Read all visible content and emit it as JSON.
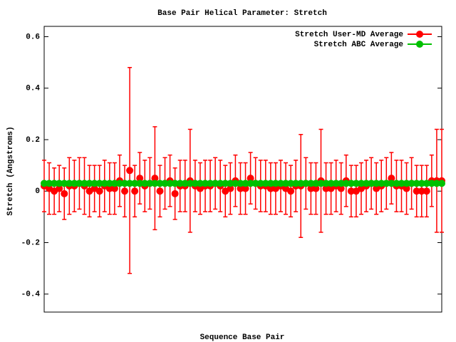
{
  "chart_data": {
    "type": "errorbar",
    "title": "Base Pair Helical Parameter: Stretch",
    "xlabel": "Sequence Base Pair",
    "ylabel": "Stretch (Angstroms)",
    "categories": [
      null,
      null,
      null,
      null,
      null,
      null,
      null,
      null,
      null,
      null,
      null,
      null,
      null,
      null,
      null,
      null,
      null,
      null,
      null,
      null,
      null,
      null,
      null,
      null,
      null,
      null,
      null,
      null,
      null,
      null,
      null,
      null,
      null,
      null,
      null,
      null,
      null,
      null,
      null,
      null,
      null,
      null,
      null,
      null,
      null,
      null,
      null,
      null,
      null,
      null,
      null,
      null,
      null,
      null,
      null,
      null,
      null,
      null,
      null,
      null,
      null,
      null,
      null,
      null,
      null,
      null,
      null,
      null,
      null,
      null,
      null,
      null,
      null,
      null,
      null,
      null,
      null,
      null,
      null,
      null
    ],
    "series": [
      {
        "name": "Stretch User-MD Average",
        "color": "#ff0000",
        "values": [
          0.02,
          0.01,
          0.0,
          0.01,
          -0.01,
          0.02,
          0.02,
          0.03,
          0.02,
          0.0,
          0.01,
          0.0,
          0.02,
          0.01,
          0.01,
          0.04,
          0.0,
          0.08,
          0.0,
          0.05,
          0.02,
          0.03,
          0.05,
          0.0,
          0.03,
          0.04,
          -0.01,
          0.02,
          0.02,
          0.04,
          0.02,
          0.01,
          0.02,
          0.02,
          0.03,
          0.02,
          0.0,
          0.01,
          0.04,
          0.01,
          0.01,
          0.05,
          0.03,
          0.02,
          0.02,
          0.01,
          0.01,
          0.02,
          0.01,
          0.0,
          0.02,
          0.02,
          0.03,
          0.01,
          0.01,
          0.04,
          0.01,
          0.01,
          0.02,
          0.01,
          0.04,
          0.0,
          0.0,
          0.01,
          0.02,
          0.03,
          0.01,
          0.02,
          0.03,
          0.05,
          0.02,
          0.02,
          0.01,
          0.03,
          0.0,
          0.0,
          0.0,
          0.04,
          0.04,
          0.04
        ],
        "errors": [
          0.1,
          0.1,
          0.09,
          0.09,
          0.1,
          0.11,
          0.1,
          0.1,
          0.11,
          0.1,
          0.09,
          0.1,
          0.1,
          0.1,
          0.1,
          0.1,
          0.1,
          0.4,
          0.1,
          0.1,
          0.1,
          0.1,
          0.2,
          0.1,
          0.1,
          0.1,
          0.1,
          0.1,
          0.1,
          0.2,
          0.1,
          0.1,
          0.1,
          0.1,
          0.1,
          0.1,
          0.1,
          0.1,
          0.1,
          0.1,
          0.1,
          0.1,
          0.1,
          0.1,
          0.1,
          0.1,
          0.1,
          0.1,
          0.1,
          0.1,
          0.1,
          0.2,
          0.1,
          0.1,
          0.1,
          0.2,
          0.1,
          0.1,
          0.1,
          0.1,
          0.1,
          0.1,
          0.1,
          0.1,
          0.1,
          0.1,
          0.1,
          0.1,
          0.1,
          0.1,
          0.1,
          0.1,
          0.1,
          0.1,
          0.1,
          0.1,
          0.1,
          0.1,
          0.2,
          0.2
        ]
      },
      {
        "name": "Stretch ABC Average",
        "color": "#00c000",
        "values": [
          0.03,
          0.03,
          0.03,
          0.03,
          0.03,
          0.03,
          0.03,
          0.03,
          0.03,
          0.03,
          0.03,
          0.03,
          0.03,
          0.03,
          0.03,
          0.03,
          0.03,
          0.03,
          0.03,
          0.03,
          0.03,
          0.03,
          0.03,
          0.03,
          0.03,
          0.03,
          0.03,
          0.03,
          0.03,
          0.03,
          0.03,
          0.03,
          0.03,
          0.03,
          0.03,
          0.03,
          0.03,
          0.03,
          0.03,
          0.03,
          0.03,
          0.03,
          0.03,
          0.03,
          0.03,
          0.03,
          0.03,
          0.03,
          0.03,
          0.03,
          0.03,
          0.03,
          0.03,
          0.03,
          0.03,
          0.03,
          0.03,
          0.03,
          0.03,
          0.03,
          0.03,
          0.03,
          0.03,
          0.03,
          0.03,
          0.03,
          0.03,
          0.03,
          0.03,
          0.03,
          0.03,
          0.03,
          0.03,
          0.03,
          0.03,
          0.03,
          0.03,
          0.03,
          0.03,
          0.03
        ]
      }
    ],
    "ylim": [
      -0.47,
      0.64
    ],
    "yticks": [
      -0.4,
      -0.2,
      0,
      0.2,
      0.4,
      0.6
    ],
    "legend": "upper right"
  }
}
